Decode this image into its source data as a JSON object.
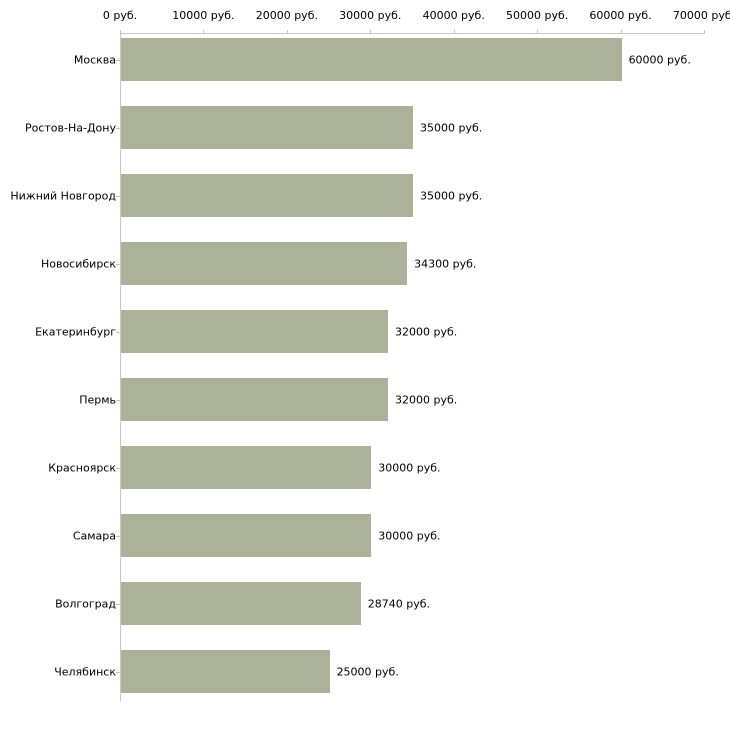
{
  "chart_data": {
    "type": "bar",
    "orientation": "horizontal",
    "title": "",
    "xlabel": "",
    "ylabel": "",
    "unit": "руб.",
    "categories": [
      "Москва",
      "Ростов-На-Дону",
      "Нижний Новгород",
      "Новосибирск",
      "Екатеринбург",
      "Пермь",
      "Красноярск",
      "Самара",
      "Волгоград",
      "Челябинск"
    ],
    "values": [
      60000,
      35000,
      35000,
      34300,
      32000,
      32000,
      30000,
      30000,
      28740,
      25000
    ],
    "value_labels": [
      "60000 руб.",
      "35000 руб.",
      "35000 руб.",
      "34300 руб.",
      "32000 руб.",
      "32000 руб.",
      "30000 руб.",
      "30000 руб.",
      "28740 руб.",
      "25000 руб."
    ],
    "xlim": [
      0,
      70000
    ],
    "x_ticks": [
      0,
      10000,
      20000,
      30000,
      40000,
      50000,
      60000,
      70000
    ],
    "x_tick_labels": [
      "0 руб.",
      "10000 руб.",
      "20000 руб.",
      "30000 руб.",
      "40000 руб.",
      "50000 руб.",
      "60000 руб.",
      "70000 руб."
    ],
    "grid": false,
    "legend": null,
    "colors": {
      "bar": "#acb19a",
      "axis_line": "#c9c9c9",
      "tick": "#c6c6a2",
      "text": "#000000",
      "background": "#ffffff"
    }
  }
}
